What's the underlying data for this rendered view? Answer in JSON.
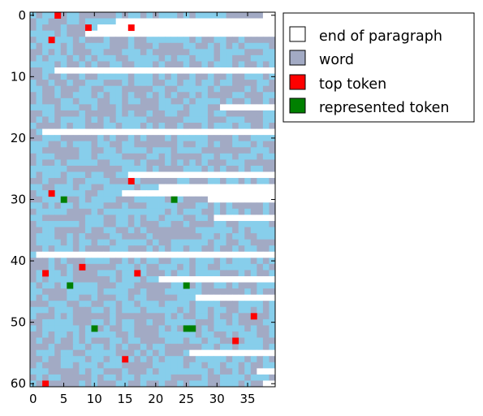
{
  "chart_data": {
    "type": "heatmap",
    "title": "",
    "xlabel": "",
    "ylabel": "",
    "n_cols": 40,
    "n_rows": 61,
    "xlim": [
      -0.5,
      39.5
    ],
    "ylim": [
      60.5,
      -0.5
    ],
    "x_ticks": [
      0,
      5,
      10,
      15,
      20,
      25,
      30,
      35
    ],
    "x_tick_labels": [
      "0",
      "5",
      "10",
      "15",
      "20",
      "25",
      "30",
      "35"
    ],
    "y_ticks": [
      0,
      10,
      20,
      30,
      40,
      50,
      60
    ],
    "y_tick_labels": [
      "0",
      "10",
      "20",
      "30",
      "40",
      "50",
      "60"
    ],
    "grid": false,
    "legend_position": "outside-right",
    "legend": [
      {
        "key": "end",
        "label": "end of paragraph",
        "color": "#ffffff"
      },
      {
        "key": "word",
        "label": "word",
        "color": "#a2aac4"
      },
      {
        "key": "top",
        "label": "top token",
        "color": "#ff0000"
      },
      {
        "key": "represented",
        "label": "represented token",
        "color": "#008000"
      }
    ],
    "word_colors": [
      "#a2aac4",
      "#87ceeb"
    ],
    "paragraph_ends": [
      {
        "row": 0,
        "start_col": 38
      },
      {
        "row": 1,
        "start_col": 14
      },
      {
        "row": 2,
        "start_col": 11
      },
      {
        "row": 3,
        "start_col": 9
      },
      {
        "row": 9,
        "start_col": 4
      },
      {
        "row": 15,
        "start_col": 31
      },
      {
        "row": 19,
        "start_col": 2
      },
      {
        "row": 26,
        "start_col": 16
      },
      {
        "row": 28,
        "start_col": 21
      },
      {
        "row": 29,
        "start_col": 15
      },
      {
        "row": 30,
        "start_col": 29
      },
      {
        "row": 33,
        "start_col": 30
      },
      {
        "row": 39,
        "start_col": 1
      },
      {
        "row": 43,
        "start_col": 21
      },
      {
        "row": 46,
        "start_col": 27
      },
      {
        "row": 55,
        "start_col": 26
      },
      {
        "row": 58,
        "start_col": 37
      },
      {
        "row": 60,
        "start_col": 38
      }
    ],
    "top_tokens": [
      {
        "x": 4,
        "y": 0
      },
      {
        "x": 9,
        "y": 2
      },
      {
        "x": 16,
        "y": 2
      },
      {
        "x": 3,
        "y": 4
      },
      {
        "x": 16,
        "y": 27
      },
      {
        "x": 3,
        "y": 29
      },
      {
        "x": 8,
        "y": 41
      },
      {
        "x": 2,
        "y": 42
      },
      {
        "x": 17,
        "y": 42
      },
      {
        "x": 36,
        "y": 49
      },
      {
        "x": 33,
        "y": 53
      },
      {
        "x": 15,
        "y": 56
      },
      {
        "x": 2,
        "y": 60
      }
    ],
    "represented_tokens": [
      {
        "x": 5,
        "y": 30
      },
      {
        "x": 23,
        "y": 30
      },
      {
        "x": 6,
        "y": 44
      },
      {
        "x": 25,
        "y": 44
      },
      {
        "x": 10,
        "y": 51
      },
      {
        "x": 25,
        "y": 51
      },
      {
        "x": 26,
        "y": 51
      }
    ]
  }
}
